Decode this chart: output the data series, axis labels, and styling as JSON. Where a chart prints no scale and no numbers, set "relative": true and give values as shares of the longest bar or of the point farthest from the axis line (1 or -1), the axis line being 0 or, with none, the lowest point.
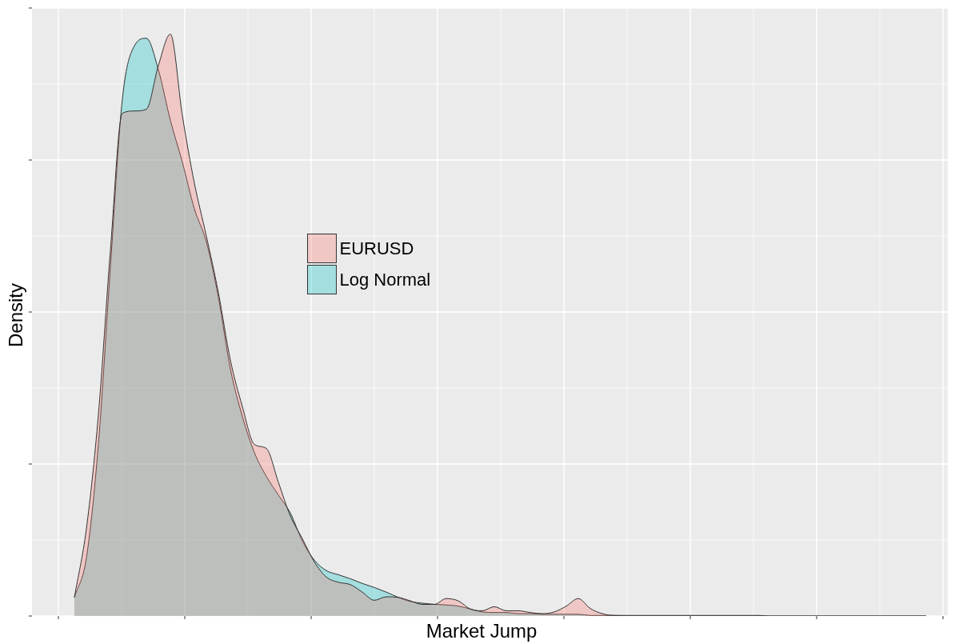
{
  "chart_data": {
    "type": "area",
    "xlabel": "Market Jump",
    "ylabel": "Density",
    "relative": true,
    "grid": true,
    "legend": "left",
    "tick_labels": false,
    "categories": [
      null,
      null,
      null,
      null,
      null,
      null,
      null,
      null,
      null,
      null,
      null,
      null,
      null,
      null,
      null,
      null,
      null,
      null,
      null,
      null,
      null,
      null,
      null,
      null,
      null,
      null,
      null,
      null,
      null,
      null,
      null,
      null,
      null,
      null,
      null,
      null,
      null,
      null,
      null,
      null,
      null,
      null,
      null,
      null,
      null,
      null,
      null,
      null,
      null,
      null,
      null,
      null,
      null,
      null,
      null,
      null,
      null,
      null,
      null,
      null,
      null,
      null,
      null,
      null,
      null,
      null,
      null,
      null,
      null,
      null,
      null,
      null
    ],
    "series": [
      {
        "name": "EURUSD",
        "color": "#f8766d",
        "values": [
          0.032,
          0.15,
          0.346,
          0.628,
          0.864,
          0.868,
          0.871,
          0.946,
          1.0,
          0.86,
          0.744,
          0.653,
          0.556,
          0.44,
          0.36,
          0.295,
          0.288,
          0.23,
          0.172,
          0.133,
          0.093,
          0.067,
          0.058,
          0.054,
          0.041,
          0.027,
          0.033,
          0.032,
          0.026,
          0.02,
          0.02,
          0.03,
          0.026,
          0.012,
          0.009,
          0.016,
          0.009,
          0.009,
          0.006,
          0.004,
          0.007,
          0.017,
          0.03,
          0.013,
          0.004,
          0.001,
          0.001,
          0.001,
          0.001,
          0.001,
          0.001,
          0.001,
          0.001,
          0.001,
          0.001,
          0.001,
          0.001,
          0.001,
          0,
          0,
          0,
          0,
          0,
          0,
          0,
          0,
          0,
          0,
          0,
          0,
          0,
          0
        ]
      },
      {
        "name": "Log Normal",
        "color": "#00bfc4",
        "values": [
          0.032,
          0.1,
          0.295,
          0.599,
          0.889,
          0.98,
          0.993,
          0.939,
          0.852,
          0.78,
          0.7,
          0.643,
          0.548,
          0.425,
          0.343,
          0.281,
          0.24,
          0.208,
          0.177,
          0.129,
          0.096,
          0.078,
          0.071,
          0.064,
          0.056,
          0.049,
          0.041,
          0.032,
          0.025,
          0.022,
          0.02,
          0.019,
          0.017,
          0.012,
          0.007,
          0.006,
          0.006,
          0.004,
          0.004,
          0.003,
          0.003,
          0.003,
          0.003,
          0.001,
          0.001,
          0.001,
          0,
          0,
          0,
          0,
          0,
          0,
          0,
          0,
          0,
          0,
          0,
          0,
          0,
          0,
          0,
          0,
          0,
          0,
          0,
          0,
          0,
          0,
          0,
          0,
          0,
          0
        ]
      }
    ]
  }
}
